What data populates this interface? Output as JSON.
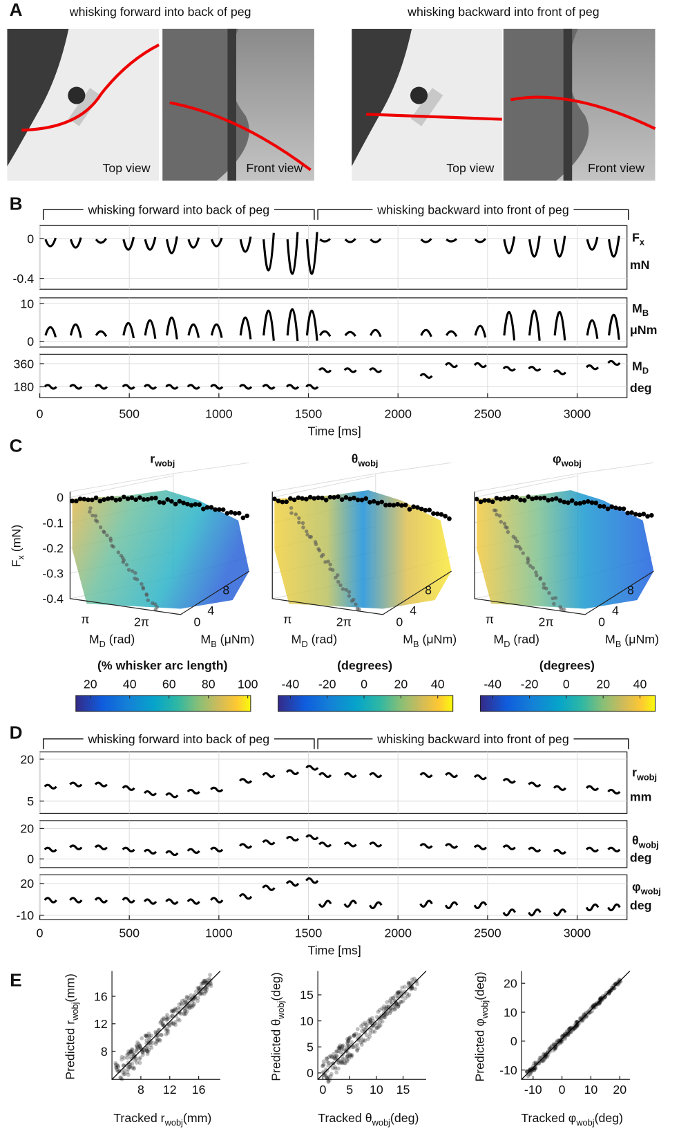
{
  "A": {
    "label": "A",
    "titles": [
      "whisking forward into back of peg",
      "whisking backward into front of peg"
    ],
    "views": [
      "Top view",
      "Front view",
      "Top view",
      "Front view"
    ]
  },
  "B": {
    "label": "B",
    "brackets": [
      "whisking forward into back of peg",
      "whisking backward into front of peg"
    ],
    "rows": [
      {
        "name": [
          "F",
          "x"
        ],
        "unit": "mN",
        "ticks": [
          0,
          -0.4
        ]
      },
      {
        "name": [
          "M",
          "B"
        ],
        "unit": "μNm",
        "ticks": [
          10,
          0
        ]
      },
      {
        "name": [
          "M",
          "D"
        ],
        "unit": "deg",
        "ticks": [
          360,
          180
        ]
      }
    ],
    "xticks": [
      0,
      500,
      1000,
      1500,
      2000,
      2500,
      3000
    ],
    "xlabel": "Time [ms]"
  },
  "C": {
    "label": "C",
    "plots": [
      {
        "title": [
          "r",
          "wobj"
        ],
        "cbar_label": "(% whisker arc length)",
        "cbar_ticks": [
          20,
          40,
          60,
          80,
          100
        ]
      },
      {
        "title": [
          "θ",
          "wobj"
        ],
        "cbar_label": "(degrees)",
        "cbar_ticks": [
          -40,
          -20,
          0,
          20,
          40
        ]
      },
      {
        "title": [
          "φ",
          "wobj"
        ],
        "cbar_label": "(degrees)",
        "cbar_ticks": [
          -40,
          -20,
          0,
          20,
          40
        ]
      }
    ],
    "zlabel": [
      "F",
      "x",
      " (mN)"
    ],
    "zticks": [
      0,
      -0.1,
      -0.2,
      -0.3,
      -0.4
    ],
    "md_ticks": [
      "π",
      "2π"
    ],
    "md_label": [
      "M",
      "D",
      " (rad)"
    ],
    "mb_ticks": [
      0,
      4,
      8
    ],
    "mb_label": [
      "M",
      "B",
      " (μNm)"
    ]
  },
  "D": {
    "label": "D",
    "brackets": [
      "whisking forward into back of peg",
      "whisking backward into front of peg"
    ],
    "rows": [
      {
        "name": [
          "r",
          "wobj"
        ],
        "unit": "mm",
        "ticks": [
          20,
          5
        ]
      },
      {
        "name": [
          "θ",
          "wobj"
        ],
        "unit": "deg",
        "ticks": [
          20,
          0
        ]
      },
      {
        "name": [
          "φ",
          "wobj"
        ],
        "unit": "deg",
        "ticks": [
          20,
          -10
        ]
      }
    ],
    "xticks": [
      0,
      500,
      1000,
      1500,
      2000,
      2500,
      3000
    ],
    "xlabel": "Time [ms]"
  },
  "E": {
    "label": "E",
    "plots": [
      {
        "xlabel": [
          "Tracked r",
          "wobj",
          "(mm)"
        ],
        "ylabel": [
          "Predicted r",
          "wobj",
          "(mm)"
        ],
        "xticks": [
          8,
          12,
          16
        ],
        "yticks": [
          8,
          12,
          16
        ]
      },
      {
        "xlabel": [
          "Tracked θ",
          "wobj",
          "(deg)"
        ],
        "ylabel": [
          "Predicted θ",
          "wobj",
          "(deg)"
        ],
        "xticks": [
          0,
          5,
          10,
          15
        ],
        "yticks": [
          0,
          5,
          10,
          15
        ]
      },
      {
        "xlabel": [
          "Tracked φ",
          "wobj",
          "(deg)"
        ],
        "ylabel": [
          "Predicted φ",
          "wobj",
          "(deg)"
        ],
        "xticks": [
          -10,
          0,
          10,
          20
        ],
        "yticks": [
          -10,
          0,
          10,
          20
        ]
      }
    ]
  }
}
